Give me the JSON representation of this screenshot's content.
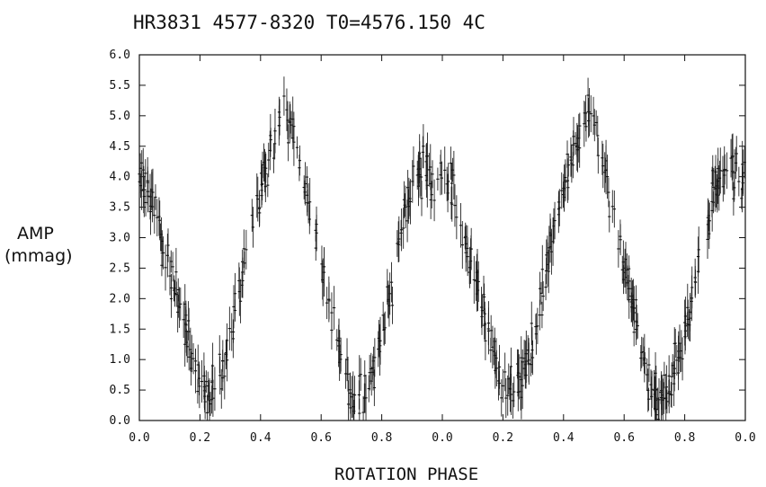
{
  "chart_data": {
    "type": "scatter",
    "title": "HR3831 4577-8320 T0=4576.150 4C",
    "xlabel": "ROTATION PHASE",
    "ylabel": [
      "AMP",
      "(mmag)"
    ],
    "xlim": [
      0,
      2
    ],
    "ylim": [
      0,
      6.0
    ],
    "x_tick_labels": [
      "0.0",
      "0.2",
      "0.4",
      "0.6",
      "0.8",
      "0.0",
      "0.2",
      "0.4",
      "0.6",
      "0.8",
      "0.0"
    ],
    "y_tick_labels": [
      "0.0",
      "0.5",
      "1.0",
      "1.5",
      "2.0",
      "2.5",
      "3.0",
      "3.5",
      "4.0",
      "4.5",
      "5.0",
      "5.5",
      "6.0"
    ],
    "grid": false,
    "series": [
      {
        "style": "points with vertical error bars",
        "phase": [
          0.0,
          0.02,
          0.04,
          0.06,
          0.08,
          0.1,
          0.12,
          0.14,
          0.16,
          0.18,
          0.2,
          0.22,
          0.24,
          0.26,
          0.28,
          0.3,
          0.32,
          0.34,
          0.36,
          0.38,
          0.4,
          0.42,
          0.44,
          0.46,
          0.48,
          0.5,
          0.52,
          0.54,
          0.56,
          0.58,
          0.6,
          0.62,
          0.64,
          0.66,
          0.68,
          0.7,
          0.72,
          0.74,
          0.76,
          0.78,
          0.8,
          0.82,
          0.84,
          0.86,
          0.88,
          0.9,
          0.92,
          0.94,
          0.96,
          0.98,
          1.0
        ],
        "amp": [
          4.0,
          3.9,
          3.7,
          3.3,
          2.9,
          2.5,
          2.1,
          1.7,
          1.3,
          0.9,
          0.6,
          0.45,
          0.5,
          0.7,
          1.0,
          1.4,
          1.9,
          2.4,
          2.9,
          3.4,
          3.8,
          4.2,
          4.5,
          4.8,
          5.0,
          4.8,
          4.4,
          4.0,
          3.6,
          3.1,
          2.6,
          2.1,
          1.6,
          1.1,
          0.7,
          0.4,
          0.3,
          0.4,
          0.7,
          1.0,
          1.4,
          1.9,
          2.4,
          2.9,
          3.4,
          3.8,
          4.1,
          4.2,
          4.1,
          4.0,
          4.0
        ],
        "typical_error": 0.25
      }
    ]
  }
}
